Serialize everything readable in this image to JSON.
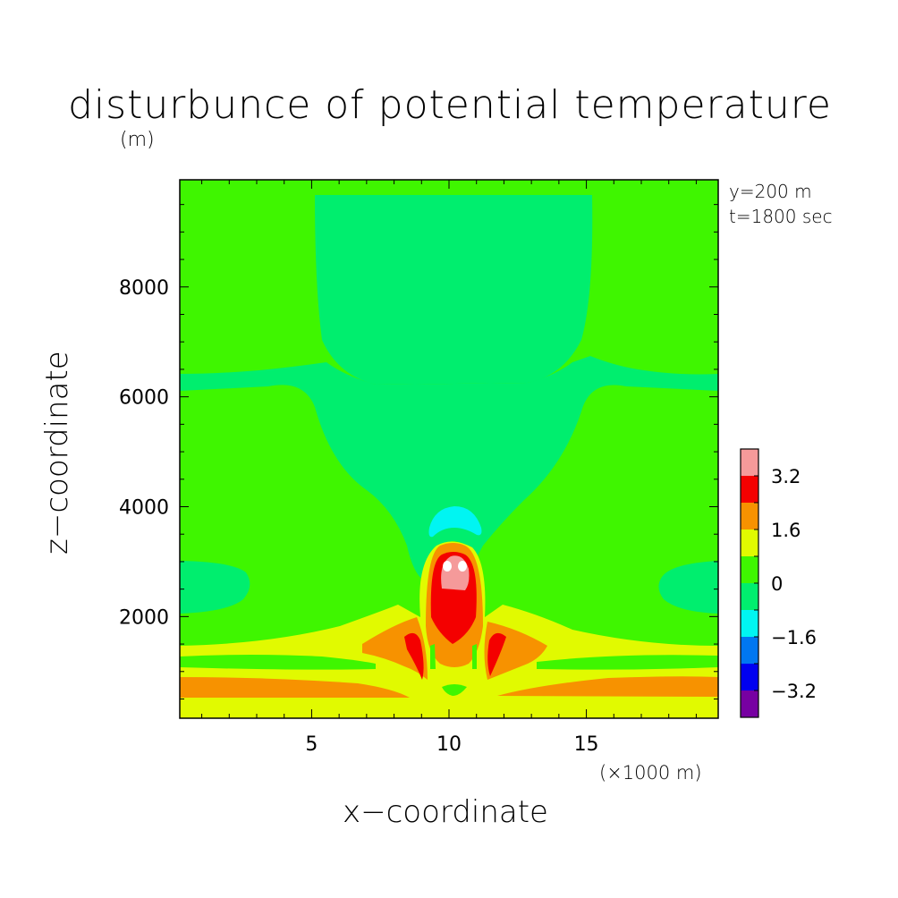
{
  "chart_data": {
    "type": "heatmap",
    "title": "disturbunce of potential temperature",
    "xlabel": "x−coordinate",
    "ylabel": "z−coordinate",
    "x_unit_label": "(×1000 m)",
    "y_unit_label": "(m)",
    "annotations": [
      "y=200 m",
      "t=1800 sec"
    ],
    "xlim": [
      0.2,
      19.8
    ],
    "ylim": [
      150,
      9950
    ],
    "x_ticks": [
      5,
      10,
      15
    ],
    "x_tick_labels": [
      "5",
      "10",
      "15"
    ],
    "y_ticks": [
      2000,
      4000,
      6000,
      8000
    ],
    "y_tick_labels": [
      "2000",
      "4000",
      "6000",
      "8000"
    ],
    "colorbar": {
      "tick_labels": [
        "3.2",
        "1.6",
        "0",
        "−1.6",
        "−3.2"
      ],
      "tick_values": [
        3.2,
        1.6,
        0,
        -1.6,
        -3.2
      ],
      "level_bounds": [
        4.0,
        3.2,
        2.4,
        1.6,
        0.8,
        0,
        -0.8,
        -1.6,
        -2.4,
        -3.2,
        -4.0
      ],
      "colors": [
        "#f59a9a",
        "#f40000",
        "#f79200",
        "#e1fa00",
        "#3ff600",
        "#00ee6e",
        "#00f5f2",
        "#0077f1",
        "#0000f0",
        "#7700a2"
      ]
    },
    "regions": [
      {
        "level": 0.4,
        "color": "#3ff600",
        "description_ref": "background"
      },
      {
        "level": -0.4,
        "color": "#00ee6e",
        "x": [
          5.0,
          15.2
        ],
        "z": [
          6000,
          9800
        ]
      },
      {
        "level": -0.4,
        "color": "#00ee6e",
        "x": [
          0.2,
          19.8
        ],
        "z": [
          3300,
          6400
        ]
      },
      {
        "level": -1.2,
        "color": "#00f5f2",
        "x": [
          9.1,
          11.2
        ],
        "z": [
          3350,
          3900
        ]
      },
      {
        "level": 2.0,
        "color": "#f79200",
        "x": [
          9.1,
          11.3
        ],
        "z": [
          1000,
          3200
        ]
      },
      {
        "level": 2.8,
        "color": "#f40000",
        "x": [
          9.3,
          11.1
        ],
        "z": [
          1400,
          3100
        ]
      },
      {
        "level": 3.6,
        "color": "#f59a9a",
        "x": [
          9.7,
          10.6
        ],
        "z": [
          2300,
          3000
        ]
      },
      {
        "level": 1.2,
        "color": "#e1fa00",
        "x": [
          0.2,
          19.8
        ],
        "z": [
          150,
          1400
        ]
      },
      {
        "level": 2.0,
        "color": "#f79200",
        "x": [
          0.2,
          19.8
        ],
        "z": [
          550,
          900
        ]
      }
    ]
  }
}
